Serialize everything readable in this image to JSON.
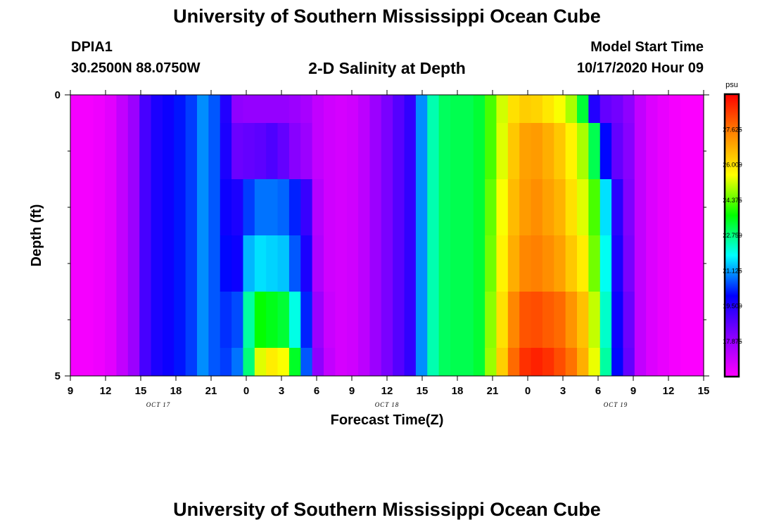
{
  "header": {
    "title": "University of Southern Mississippi Ocean Cube",
    "station": "DPIA1",
    "coords": "30.2500N 88.0750W",
    "subtitle": "2-D Salinity at Depth",
    "model_start_label": "Model Start Time",
    "model_start_value": "10/17/2020 Hour 09"
  },
  "footer": {
    "title": "University of Southern Mississippi Ocean Cube"
  },
  "chart_data": {
    "type": "heatmap",
    "title": "2-D Salinity at Depth",
    "xlabel": "Forecast Time(Z)",
    "ylabel": "Depth (ft)",
    "x_tick_labels": [
      "9",
      "12",
      "15",
      "18",
      "21",
      "0",
      "3",
      "6",
      "9",
      "12",
      "15",
      "18",
      "21",
      "0",
      "3",
      "6",
      "9",
      "12",
      "15"
    ],
    "date_labels": [
      "OCT 17",
      "OCT 18",
      "OCT 19"
    ],
    "y_tick_labels": [
      "0",
      "5"
    ],
    "ylim": [
      0,
      5
    ],
    "colorbar": {
      "unit": "psu",
      "labels": [
        "27.625",
        "26.000",
        "24.375",
        "22.750",
        "21.125",
        "19.500",
        "17.875"
      ],
      "range": [
        16.25,
        29.25
      ],
      "colors": [
        "#ff00ff",
        "#8800ff",
        "#0000ff",
        "#00ffff",
        "#00ff00",
        "#ffff00",
        "#ff8800",
        "#ff0000"
      ]
    },
    "depth_bands": [
      "0-0.5",
      "0.5-1.5",
      "1.5-2.5",
      "2.5-3.5",
      "3.5-4.5",
      "4.5-5"
    ],
    "columns": [
      {
        "x": 0,
        "values": [
          16.4,
          16.4,
          16.4,
          16.4,
          16.4,
          16.4
        ]
      },
      {
        "x": 1,
        "values": [
          16.4,
          16.4,
          16.4,
          16.4,
          16.4,
          16.4
        ]
      },
      {
        "x": 2,
        "values": [
          16.5,
          16.5,
          16.5,
          16.5,
          16.5,
          16.5
        ]
      },
      {
        "x": 3,
        "values": [
          16.7,
          16.7,
          16.7,
          16.7,
          16.7,
          16.7
        ]
      },
      {
        "x": 4,
        "values": [
          17.2,
          17.2,
          17.2,
          17.2,
          17.2,
          17.2
        ]
      },
      {
        "x": 5,
        "values": [
          17.8,
          17.8,
          17.8,
          17.8,
          17.8,
          17.8
        ]
      },
      {
        "x": 6,
        "values": [
          19.0,
          19.0,
          19.0,
          19.0,
          19.0,
          19.0
        ]
      },
      {
        "x": 7,
        "values": [
          19.6,
          19.6,
          19.6,
          19.6,
          19.6,
          19.6
        ]
      },
      {
        "x": 8,
        "values": [
          19.8,
          19.8,
          19.8,
          19.8,
          19.8,
          19.8
        ]
      },
      {
        "x": 9,
        "values": [
          20.1,
          20.1,
          20.1,
          20.1,
          20.1,
          20.1
        ]
      },
      {
        "x": 10,
        "values": [
          20.4,
          20.4,
          20.4,
          20.4,
          20.4,
          20.4
        ]
      },
      {
        "x": 11,
        "values": [
          21.0,
          21.0,
          21.0,
          21.0,
          21.0,
          21.0
        ]
      },
      {
        "x": 12,
        "values": [
          20.6,
          20.6,
          20.6,
          20.6,
          20.6,
          20.6
        ]
      },
      {
        "x": 13,
        "values": [
          19.5,
          19.6,
          19.8,
          20.0,
          20.3,
          20.4
        ]
      },
      {
        "x": 14,
        "values": [
          18.0,
          18.5,
          19.6,
          19.8,
          20.5,
          20.8
        ]
      },
      {
        "x": 15,
        "values": [
          17.9,
          18.6,
          20.4,
          21.3,
          22.5,
          22.8
        ]
      },
      {
        "x": 16,
        "values": [
          17.9,
          18.7,
          20.8,
          21.6,
          23.7,
          25.3
        ]
      },
      {
        "x": 17,
        "values": [
          17.9,
          18.9,
          20.8,
          21.5,
          23.5,
          25.8
        ]
      },
      {
        "x": 18,
        "values": [
          17.9,
          18.6,
          20.7,
          21.4,
          23.3,
          25.5
        ]
      },
      {
        "x": 19,
        "values": [
          17.8,
          18.1,
          20.2,
          20.6,
          22.0,
          23.4
        ]
      },
      {
        "x": 20,
        "values": [
          17.6,
          17.8,
          19.2,
          19.6,
          20.2,
          20.6
        ]
      },
      {
        "x": 21,
        "values": [
          17.2,
          17.2,
          17.4,
          17.5,
          17.8,
          18.0
        ]
      },
      {
        "x": 22,
        "values": [
          17.0,
          17.0,
          17.0,
          17.0,
          17.1,
          17.2
        ]
      },
      {
        "x": 23,
        "values": [
          16.9,
          16.9,
          16.9,
          16.9,
          16.9,
          16.9
        ]
      },
      {
        "x": 24,
        "values": [
          17.0,
          17.0,
          17.0,
          17.0,
          17.0,
          17.0
        ]
      },
      {
        "x": 25,
        "values": [
          17.3,
          17.3,
          17.3,
          17.3,
          17.3,
          17.3
        ]
      },
      {
        "x": 26,
        "values": [
          17.8,
          17.8,
          17.8,
          17.8,
          17.8,
          17.8
        ]
      },
      {
        "x": 27,
        "values": [
          18.3,
          18.3,
          18.3,
          18.3,
          18.3,
          18.3
        ]
      },
      {
        "x": 28,
        "values": [
          18.8,
          18.8,
          18.8,
          18.8,
          18.8,
          18.8
        ]
      },
      {
        "x": 29,
        "values": [
          19.3,
          19.3,
          19.3,
          19.3,
          19.3,
          19.3
        ]
      },
      {
        "x": 30,
        "values": [
          21.0,
          21.0,
          21.0,
          21.0,
          21.0,
          21.0
        ]
      },
      {
        "x": 31,
        "values": [
          22.4,
          22.4,
          22.4,
          22.4,
          22.4,
          22.4
        ]
      },
      {
        "x": 32,
        "values": [
          23.0,
          23.0,
          23.0,
          23.0,
          23.0,
          23.0
        ]
      },
      {
        "x": 33,
        "values": [
          23.1,
          23.1,
          23.1,
          23.1,
          23.1,
          23.1
        ]
      },
      {
        "x": 34,
        "values": [
          23.1,
          23.1,
          23.1,
          23.1,
          23.1,
          23.1
        ]
      },
      {
        "x": 35,
        "values": [
          23.3,
          23.3,
          23.3,
          23.3,
          23.3,
          23.3
        ]
      },
      {
        "x": 36,
        "values": [
          24.2,
          24.2,
          24.4,
          24.5,
          24.7,
          24.8
        ]
      },
      {
        "x": 37,
        "values": [
          25.2,
          25.3,
          25.5,
          25.7,
          26.0,
          26.3
        ]
      },
      {
        "x": 38,
        "values": [
          26.0,
          26.4,
          26.6,
          26.8,
          27.4,
          27.8
        ]
      },
      {
        "x": 39,
        "values": [
          26.3,
          27.0,
          27.1,
          27.4,
          28.1,
          28.6
        ]
      },
      {
        "x": 40,
        "values": [
          26.2,
          27.1,
          27.3,
          27.5,
          28.2,
          28.8
        ]
      },
      {
        "x": 41,
        "values": [
          25.9,
          26.8,
          27.0,
          27.3,
          28.0,
          28.6
        ]
      },
      {
        "x": 42,
        "values": [
          25.5,
          26.4,
          26.7,
          27.0,
          27.8,
          28.2
        ]
      },
      {
        "x": 43,
        "values": [
          24.9,
          25.7,
          26.0,
          26.4,
          27.2,
          27.7
        ]
      },
      {
        "x": 44,
        "values": [
          23.3,
          24.9,
          25.3,
          25.8,
          26.5,
          26.8
        ]
      },
      {
        "x": 45,
        "values": [
          19.5,
          23.1,
          24.2,
          24.5,
          25.1,
          25.4
        ]
      },
      {
        "x": 46,
        "values": [
          18.6,
          20.0,
          21.6,
          21.9,
          22.2,
          22.5
        ]
      },
      {
        "x": 47,
        "values": [
          18.4,
          18.6,
          19.4,
          19.6,
          19.8,
          20.0
        ]
      },
      {
        "x": 48,
        "values": [
          18.0,
          18.1,
          18.2,
          18.3,
          18.5,
          18.6
        ]
      },
      {
        "x": 49,
        "values": [
          17.2,
          17.2,
          17.2,
          17.2,
          17.2,
          17.2
        ]
      },
      {
        "x": 50,
        "values": [
          16.8,
          16.8,
          16.8,
          16.8,
          16.8,
          16.8
        ]
      },
      {
        "x": 51,
        "values": [
          16.6,
          16.6,
          16.6,
          16.6,
          16.6,
          16.6
        ]
      },
      {
        "x": 52,
        "values": [
          16.4,
          16.4,
          16.4,
          16.4,
          16.4,
          16.4
        ]
      },
      {
        "x": 53,
        "values": [
          16.3,
          16.3,
          16.3,
          16.3,
          16.3,
          16.3
        ]
      },
      {
        "x": 54,
        "values": [
          16.3,
          16.3,
          16.3,
          16.3,
          16.3,
          16.3
        ]
      }
    ]
  }
}
